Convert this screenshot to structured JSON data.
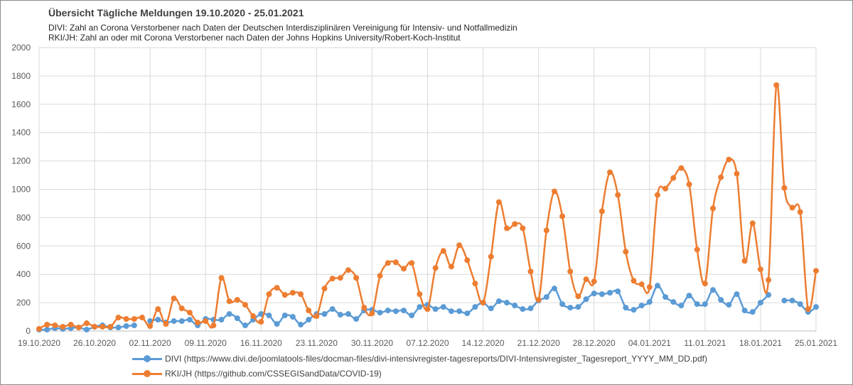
{
  "title": "Übersicht Tägliche Meldungen 19.10.2020 - 25.01.2021",
  "subtitle_lines": [
    "DIVI: Zahl an Corona Verstorbener nach Daten der Deutschen Interdisziplinären Vereinigung für Intensiv- und Notfallmedizin",
    "RKI/JH: Zahl an oder mit Corona Verstorbener nach Daten der Johns Hopkins University/Robert-Koch-Institut"
  ],
  "colors": {
    "divi": "#5b9bd5",
    "rki": "#ed7d31",
    "grid": "#d9d9d9",
    "axis_text": "#595959"
  },
  "chart_data": {
    "type": "line",
    "x_start": "19.10.2020",
    "x_end": "25.01.2021",
    "x_tick_labels": [
      "19.10.2020",
      "26.10.2020",
      "02.11.2020",
      "09.11.2020",
      "16.11.2020",
      "23.11.2020",
      "30.11.2020",
      "07.12.2020",
      "14.12.2020",
      "21.12.2020",
      "28.12.2020",
      "04.01.2021",
      "11.01.2021",
      "18.01.2021",
      "25.01.2021"
    ],
    "y_ticks": [
      0,
      200,
      400,
      600,
      800,
      1000,
      1200,
      1400,
      1600,
      1800,
      2000
    ],
    "ylim": [
      0,
      2000
    ],
    "grid": true,
    "legend_position": "bottom",
    "series": [
      {
        "name": "DIVI (https://www.divi.de/joomlatools-files/docman-files/divi-intensivregister-tagesreports/DIVI-Intensivregister_Tagesreport_YYYY_MM_DD.pdf)",
        "key": "divi",
        "values": [
          10,
          10,
          20,
          15,
          20,
          25,
          10,
          30,
          40,
          25,
          25,
          35,
          40,
          null,
          70,
          80,
          60,
          70,
          70,
          80,
          40,
          85,
          80,
          80,
          120,
          90,
          40,
          80,
          120,
          110,
          50,
          110,
          100,
          45,
          80,
          120,
          120,
          155,
          115,
          120,
          85,
          145,
          150,
          130,
          145,
          140,
          145,
          110,
          170,
          185,
          155,
          170,
          140,
          140,
          125,
          170,
          200,
          160,
          210,
          200,
          180,
          155,
          160,
          215,
          240,
          300,
          190,
          165,
          170,
          225,
          265,
          260,
          270,
          280,
          165,
          150,
          180,
          205,
          320,
          240,
          205,
          180,
          250,
          190,
          190,
          290,
          220,
          185,
          260,
          145,
          135,
          200,
          255,
          null,
          215,
          215,
          190,
          135,
          170
        ]
      },
      {
        "name": "RKI/JH (https://github.com/CSSEGISandData/COVID-19)",
        "key": "rki",
        "values": [
          15,
          45,
          40,
          30,
          45,
          25,
          55,
          30,
          30,
          30,
          95,
          85,
          85,
          95,
          35,
          155,
          50,
          230,
          160,
          130,
          60,
          70,
          40,
          375,
          210,
          220,
          185,
          105,
          65,
          260,
          305,
          255,
          270,
          260,
          145,
          105,
          300,
          370,
          375,
          430,
          375,
          165,
          125,
          390,
          480,
          485,
          440,
          480,
          260,
          155,
          445,
          565,
          455,
          605,
          500,
          335,
          200,
          525,
          910,
          725,
          755,
          725,
          420,
          220,
          710,
          985,
          810,
          420,
          245,
          365,
          350,
          845,
          1120,
          960,
          560,
          355,
          330,
          310,
          960,
          1005,
          1080,
          1150,
          1035,
          575,
          335,
          865,
          1085,
          1210,
          1110,
          495,
          760,
          435,
          360,
          1735,
          1010,
          870,
          840,
          155,
          425
        ]
      }
    ]
  }
}
